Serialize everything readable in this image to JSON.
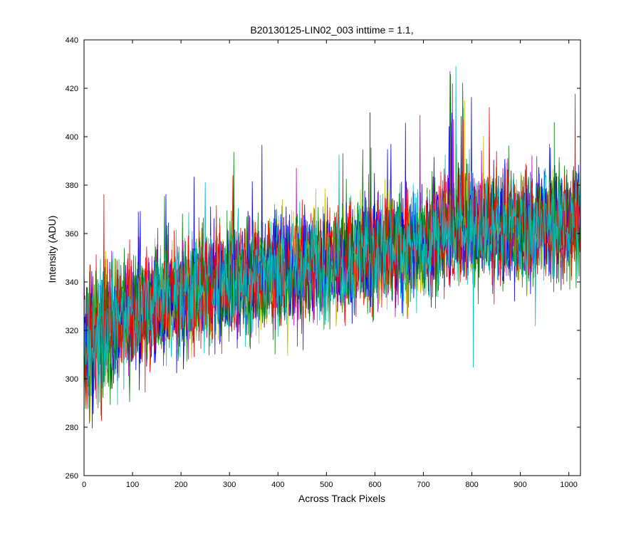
{
  "chart_data": {
    "type": "line",
    "title": "B20130125-LIN02_003 inttime = 1.1,",
    "xlabel": "Across Track Pixels",
    "ylabel": "Intensity (ADU)",
    "xlim": [
      0,
      1024
    ],
    "ylim": [
      260,
      440
    ],
    "x_ticks": [
      0,
      100,
      200,
      300,
      400,
      500,
      600,
      700,
      800,
      900,
      1000
    ],
    "y_ticks": [
      260,
      280,
      300,
      320,
      340,
      360,
      380,
      400,
      420,
      440
    ],
    "grid": false,
    "legend": "none",
    "series_colors": [
      "#0000ff",
      "#008000",
      "#ff0000",
      "#00bfbf",
      "#bf00bf",
      "#bfbf00",
      "#0000ff",
      "#008000",
      "#ff0000",
      "#00bfbf"
    ],
    "trend": {
      "x": [
        0,
        50,
        100,
        200,
        300,
        400,
        500,
        600,
        700,
        750,
        800,
        900,
        1024
      ],
      "y": [
        312,
        322,
        327,
        335,
        340,
        345,
        348,
        352,
        356,
        362,
        364,
        362,
        366
      ]
    },
    "noise_amplitude": 11,
    "peaks": [
      {
        "x": 760,
        "y": 422
      },
      {
        "x": 785,
        "y": 415
      },
      {
        "x": 590,
        "y": 410
      },
      {
        "x": 970,
        "y": 406
      }
    ]
  }
}
